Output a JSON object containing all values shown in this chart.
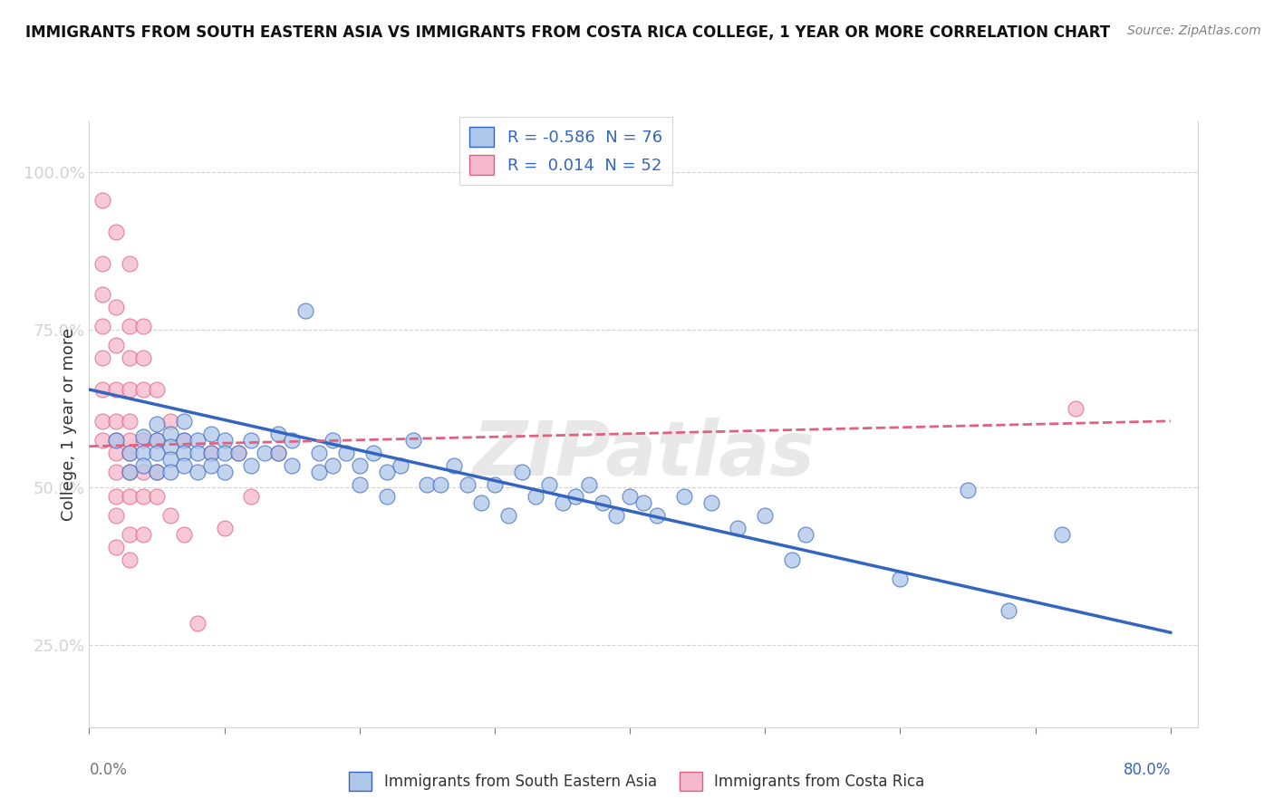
{
  "title": "IMMIGRANTS FROM SOUTH EASTERN ASIA VS IMMIGRANTS FROM COSTA RICA COLLEGE, 1 YEAR OR MORE CORRELATION CHART",
  "source": "Source: ZipAtlas.com",
  "ylabel": "College, 1 year or more",
  "legend_blue_r": "-0.586",
  "legend_blue_n": "76",
  "legend_pink_r": "0.014",
  "legend_pink_n": "52",
  "legend_label_blue": "Immigrants from South Eastern Asia",
  "legend_label_pink": "Immigrants from Costa Rica",
  "y_ticks": [
    0.25,
    0.5,
    0.75,
    1.0
  ],
  "y_tick_labels": [
    "25.0%",
    "50.0%",
    "75.0%",
    "100.0%"
  ],
  "x_ticks": [
    0.0,
    0.1,
    0.2,
    0.3,
    0.4,
    0.5,
    0.6,
    0.7,
    0.8
  ],
  "x_range": [
    0.0,
    0.82
  ],
  "y_range": [
    0.12,
    1.08
  ],
  "watermark": "ZIPatlas",
  "blue_color": "#aec6e8",
  "pink_color": "#f5b8cc",
  "blue_line_color": "#3465c0",
  "pink_line_color": "#e06080",
  "tick_color": "#777777",
  "blue_scatter": [
    [
      0.02,
      0.575
    ],
    [
      0.03,
      0.555
    ],
    [
      0.03,
      0.525
    ],
    [
      0.04,
      0.58
    ],
    [
      0.04,
      0.555
    ],
    [
      0.04,
      0.535
    ],
    [
      0.05,
      0.6
    ],
    [
      0.05,
      0.575
    ],
    [
      0.05,
      0.555
    ],
    [
      0.05,
      0.525
    ],
    [
      0.06,
      0.585
    ],
    [
      0.06,
      0.565
    ],
    [
      0.06,
      0.545
    ],
    [
      0.06,
      0.525
    ],
    [
      0.07,
      0.605
    ],
    [
      0.07,
      0.575
    ],
    [
      0.07,
      0.555
    ],
    [
      0.07,
      0.535
    ],
    [
      0.08,
      0.575
    ],
    [
      0.08,
      0.555
    ],
    [
      0.08,
      0.525
    ],
    [
      0.09,
      0.585
    ],
    [
      0.09,
      0.555
    ],
    [
      0.09,
      0.535
    ],
    [
      0.1,
      0.575
    ],
    [
      0.1,
      0.555
    ],
    [
      0.1,
      0.525
    ],
    [
      0.11,
      0.555
    ],
    [
      0.12,
      0.575
    ],
    [
      0.12,
      0.535
    ],
    [
      0.13,
      0.555
    ],
    [
      0.14,
      0.585
    ],
    [
      0.14,
      0.555
    ],
    [
      0.15,
      0.575
    ],
    [
      0.15,
      0.535
    ],
    [
      0.16,
      0.78
    ],
    [
      0.17,
      0.555
    ],
    [
      0.17,
      0.525
    ],
    [
      0.18,
      0.575
    ],
    [
      0.18,
      0.535
    ],
    [
      0.19,
      0.555
    ],
    [
      0.2,
      0.535
    ],
    [
      0.2,
      0.505
    ],
    [
      0.21,
      0.555
    ],
    [
      0.22,
      0.525
    ],
    [
      0.22,
      0.485
    ],
    [
      0.23,
      0.535
    ],
    [
      0.24,
      0.575
    ],
    [
      0.25,
      0.505
    ],
    [
      0.26,
      0.505
    ],
    [
      0.27,
      0.535
    ],
    [
      0.28,
      0.505
    ],
    [
      0.29,
      0.475
    ],
    [
      0.3,
      0.505
    ],
    [
      0.31,
      0.455
    ],
    [
      0.32,
      0.525
    ],
    [
      0.33,
      0.485
    ],
    [
      0.34,
      0.505
    ],
    [
      0.35,
      0.475
    ],
    [
      0.36,
      0.485
    ],
    [
      0.37,
      0.505
    ],
    [
      0.38,
      0.475
    ],
    [
      0.39,
      0.455
    ],
    [
      0.4,
      0.485
    ],
    [
      0.41,
      0.475
    ],
    [
      0.42,
      0.455
    ],
    [
      0.44,
      0.485
    ],
    [
      0.46,
      0.475
    ],
    [
      0.48,
      0.435
    ],
    [
      0.5,
      0.455
    ],
    [
      0.52,
      0.385
    ],
    [
      0.53,
      0.425
    ],
    [
      0.6,
      0.355
    ],
    [
      0.65,
      0.495
    ],
    [
      0.68,
      0.305
    ],
    [
      0.72,
      0.425
    ]
  ],
  "pink_scatter": [
    [
      0.01,
      0.955
    ],
    [
      0.01,
      0.855
    ],
    [
      0.01,
      0.805
    ],
    [
      0.01,
      0.755
    ],
    [
      0.01,
      0.705
    ],
    [
      0.01,
      0.655
    ],
    [
      0.01,
      0.605
    ],
    [
      0.01,
      0.575
    ],
    [
      0.02,
      0.905
    ],
    [
      0.02,
      0.785
    ],
    [
      0.02,
      0.725
    ],
    [
      0.02,
      0.655
    ],
    [
      0.02,
      0.605
    ],
    [
      0.02,
      0.575
    ],
    [
      0.02,
      0.555
    ],
    [
      0.02,
      0.525
    ],
    [
      0.02,
      0.485
    ],
    [
      0.02,
      0.455
    ],
    [
      0.02,
      0.405
    ],
    [
      0.03,
      0.855
    ],
    [
      0.03,
      0.755
    ],
    [
      0.03,
      0.705
    ],
    [
      0.03,
      0.655
    ],
    [
      0.03,
      0.605
    ],
    [
      0.03,
      0.575
    ],
    [
      0.03,
      0.555
    ],
    [
      0.03,
      0.525
    ],
    [
      0.03,
      0.485
    ],
    [
      0.03,
      0.425
    ],
    [
      0.03,
      0.385
    ],
    [
      0.04,
      0.755
    ],
    [
      0.04,
      0.705
    ],
    [
      0.04,
      0.655
    ],
    [
      0.04,
      0.575
    ],
    [
      0.04,
      0.525
    ],
    [
      0.04,
      0.485
    ],
    [
      0.04,
      0.425
    ],
    [
      0.05,
      0.655
    ],
    [
      0.05,
      0.575
    ],
    [
      0.05,
      0.525
    ],
    [
      0.05,
      0.485
    ],
    [
      0.06,
      0.605
    ],
    [
      0.06,
      0.455
    ],
    [
      0.07,
      0.575
    ],
    [
      0.07,
      0.425
    ],
    [
      0.08,
      0.285
    ],
    [
      0.09,
      0.555
    ],
    [
      0.1,
      0.435
    ],
    [
      0.11,
      0.555
    ],
    [
      0.12,
      0.485
    ],
    [
      0.14,
      0.555
    ],
    [
      0.73,
      0.625
    ]
  ]
}
